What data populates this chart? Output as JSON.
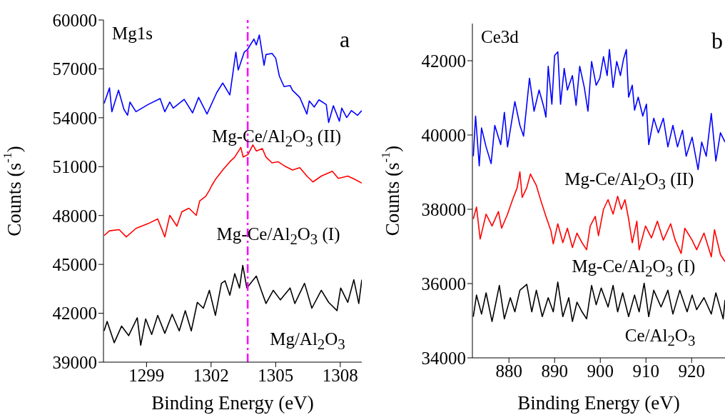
{
  "chart_data": [
    {
      "type": "line",
      "title": "Mg1s",
      "xlabel": "Binding Energy (eV)",
      "ylabel": "Counts (s$^{-1}$)",
      "xlim": [
        1297,
        1309
      ],
      "xticks": [
        1299,
        1302,
        1305,
        1308
      ],
      "ylim": [
        39000,
        60000
      ],
      "yticks": [
        39000,
        42000,
        45000,
        48000,
        51000,
        54000,
        57000,
        60000
      ],
      "annotations": [
        "a",
        "Mg-Ce/Al$_{2}$O$_{3}$ (II)",
        "Mg-Ce/Al$_{2}$O$_{3}$ (I)",
        "Mg/Al$_{2}$O$_{3}$"
      ],
      "ref_lines": [
        {
          "axis": "x",
          "value": 1303.7,
          "color": "#ff00ff",
          "line_style": "dashed"
        }
      ],
      "series": [
        {
          "color": "#0000ff",
          "x": [
            1297.03,
            1297.28,
            1297.39,
            1297.7,
            1297.95,
            1298.12,
            1298.23,
            1298.51,
            1299.07,
            1299.63,
            1299.85,
            1300.08,
            1300.24,
            1300.75,
            1301.14,
            1301.42,
            1301.81,
            1302.26,
            1302.54,
            1302.87,
            1303.15,
            1303.26,
            1303.54,
            1303.68,
            1303.99,
            1304.1,
            1304.24,
            1304.46,
            1304.55,
            1304.83,
            1305.0,
            1305.17,
            1305.39,
            1305.67,
            1305.78,
            1306.12,
            1306.45,
            1306.56,
            1306.79,
            1307.01,
            1307.35,
            1307.46,
            1307.68,
            1307.96,
            1308.07,
            1308.3,
            1308.52,
            1308.8,
            1309.0
          ],
          "values": [
            54880,
            55830,
            54370,
            55690,
            54520,
            54150,
            54960,
            54370,
            54810,
            55180,
            54370,
            54960,
            54590,
            55130,
            54300,
            55250,
            54230,
            55540,
            56130,
            55400,
            58030,
            56930,
            58030,
            58170,
            58830,
            58470,
            59080,
            57220,
            57880,
            57950,
            57660,
            56560,
            55910,
            55980,
            55690,
            55250,
            54230,
            55030,
            54660,
            55100,
            54810,
            53710,
            54740,
            53790,
            54590,
            54010,
            54440,
            54150,
            54440
          ]
        },
        {
          "color": "#ff0000",
          "x": [
            1297.03,
            1297.28,
            1297.73,
            1298.06,
            1298.51,
            1299.07,
            1299.52,
            1299.85,
            1300.08,
            1300.41,
            1300.64,
            1300.97,
            1301.31,
            1301.47,
            1301.75,
            1301.92,
            1302.03,
            1302.2,
            1302.54,
            1302.87,
            1303.1,
            1303.38,
            1303.49,
            1303.71,
            1303.94,
            1304.1,
            1304.38,
            1304.55,
            1304.83,
            1305.11,
            1305.45,
            1305.78,
            1306.12,
            1306.45,
            1306.73,
            1307.12,
            1307.63,
            1307.91,
            1308.35,
            1308.69,
            1309.0
          ],
          "values": [
            46770,
            47060,
            47130,
            46690,
            47210,
            47500,
            47790,
            46690,
            48010,
            47350,
            48230,
            48450,
            48010,
            48890,
            49180,
            49550,
            49840,
            50210,
            50790,
            51300,
            51590,
            52180,
            51590,
            51740,
            52330,
            51960,
            52110,
            51590,
            51230,
            51300,
            51010,
            50790,
            50940,
            50420,
            50060,
            50420,
            50720,
            50280,
            50420,
            50210,
            49990
          ]
        },
        {
          "color": "#000000",
          "x": [
            1297.03,
            1297.17,
            1297.5,
            1297.84,
            1298.17,
            1298.57,
            1298.73,
            1298.96,
            1299.24,
            1299.52,
            1299.85,
            1300.19,
            1300.52,
            1300.8,
            1301.08,
            1301.36,
            1301.64,
            1301.92,
            1302.2,
            1302.48,
            1302.65,
            1302.87,
            1303.1,
            1303.32,
            1303.47,
            1303.66,
            1303.88,
            1304.1,
            1304.33,
            1304.55,
            1304.89,
            1305.22,
            1305.67,
            1305.89,
            1306.34,
            1306.68,
            1307.12,
            1307.46,
            1307.85,
            1308.02,
            1308.35,
            1308.63,
            1308.86,
            1309.0
          ],
          "values": [
            40920,
            41500,
            40190,
            41210,
            40630,
            41720,
            40040,
            41650,
            40700,
            41870,
            40770,
            41940,
            40920,
            42160,
            40920,
            42670,
            42310,
            43410,
            41870,
            43840,
            43990,
            43110,
            44430,
            43550,
            44940,
            43550,
            43920,
            44280,
            43410,
            42600,
            43410,
            42820,
            43550,
            42600,
            43840,
            42310,
            43410,
            42670,
            42160,
            43550,
            42670,
            44060,
            42600,
            44060
          ]
        }
      ]
    },
    {
      "type": "line",
      "title": "Ce3d",
      "xlabel": "Binding Energy (eV)",
      "ylabel": "Counts (s$^{-1}$)",
      "xlim": [
        872,
        927.3
      ],
      "xticks": [
        880,
        890,
        900,
        910,
        920
      ],
      "ylim": [
        34000,
        43000
      ],
      "yticks": [
        34000,
        36000,
        38000,
        40000,
        42000
      ],
      "annotations": [
        "b",
        "Mg-Ce/Al$_{2}$O$_{3}$ (II)",
        "Mg-Ce/Al$_{2}$O$_{3}$ (I)",
        "Ce/Al$_{2}$O$_{3}$"
      ],
      "series": [
        {
          "color": "#0000ff",
          "x": [
            872.2,
            872.7,
            873.5,
            874.0,
            875.0,
            876.1,
            876.9,
            878.2,
            879.0,
            879.7,
            881.3,
            882.4,
            883.2,
            884.5,
            885.5,
            886.6,
            887.6,
            888.1,
            888.6,
            889.4,
            890.0,
            890.7,
            891.3,
            892.1,
            892.8,
            893.9,
            894.7,
            895.5,
            896.5,
            897.3,
            898.1,
            899.1,
            899.9,
            900.7,
            901.5,
            902.0,
            902.8,
            903.6,
            904.4,
            905.1,
            905.7,
            906.2,
            907.0,
            907.5,
            908.3,
            909.3,
            910.1,
            910.6,
            911.7,
            912.7,
            913.8,
            914.8,
            915.9,
            916.9,
            918.0,
            918.8,
            920.1,
            921.4,
            922.2,
            923.2,
            924.3,
            925.3,
            926.3,
            927.3
          ],
          "values": [
            39430,
            40510,
            39170,
            40190,
            39680,
            39230,
            40260,
            39740,
            40610,
            39680,
            40900,
            40260,
            39970,
            41530,
            40640,
            41210,
            40770,
            40480,
            41850,
            40830,
            42140,
            42240,
            40830,
            41790,
            41210,
            41600,
            40800,
            41850,
            41280,
            40640,
            41980,
            41340,
            41530,
            42110,
            41600,
            42300,
            41280,
            41980,
            41600,
            42050,
            42300,
            41020,
            41340,
            40670,
            41020,
            40510,
            40830,
            39740,
            40450,
            40060,
            40450,
            39680,
            40260,
            39680,
            40130,
            39430,
            39940,
            39070,
            39810,
            39430,
            40580,
            39300,
            40060,
            39810
          ]
        },
        {
          "color": "#ff0000",
          "x": [
            872.2,
            872.9,
            873.7,
            875.0,
            876.3,
            877.7,
            878.4,
            879.7,
            880.8,
            881.8,
            882.4,
            882.9,
            883.9,
            884.7,
            886.0,
            887.1,
            888.1,
            889.2,
            889.7,
            890.7,
            891.8,
            892.8,
            893.9,
            894.9,
            896.0,
            897.0,
            897.8,
            898.9,
            899.6,
            900.7,
            901.7,
            902.8,
            903.8,
            904.6,
            905.4,
            906.2,
            907.0,
            908.0,
            908.5,
            909.9,
            911.2,
            912.5,
            913.8,
            915.4,
            916.4,
            917.7,
            918.5,
            920.1,
            921.1,
            922.7,
            924.3,
            925.0,
            926.3,
            927.3
          ],
          "values": [
            37740,
            38060,
            37200,
            37870,
            37550,
            37940,
            37490,
            37870,
            38260,
            38580,
            39010,
            38320,
            38580,
            38950,
            38640,
            38190,
            37810,
            37420,
            37070,
            37610,
            37100,
            37490,
            36970,
            37360,
            37100,
            36910,
            37550,
            37810,
            37290,
            38000,
            38260,
            37870,
            38350,
            38000,
            38260,
            37740,
            37100,
            37680,
            36910,
            37550,
            37230,
            37680,
            37170,
            37610,
            37170,
            36810,
            37490,
            37170,
            36910,
            37360,
            36720,
            37450,
            36780,
            36590
          ]
        },
        {
          "color": "#000000",
          "x": [
            872.2,
            872.9,
            874.0,
            875.0,
            876.3,
            877.9,
            879.0,
            880.3,
            881.3,
            882.4,
            883.9,
            885.0,
            886.0,
            887.3,
            888.6,
            889.7,
            890.7,
            891.8,
            893.1,
            893.9,
            894.9,
            896.0,
            897.0,
            898.1,
            899.1,
            900.2,
            901.7,
            902.8,
            903.8,
            904.9,
            906.2,
            907.5,
            908.5,
            909.6,
            910.6,
            911.7,
            913.3,
            914.8,
            915.9,
            917.4,
            919.0,
            920.1,
            921.1,
            922.7,
            924.3,
            925.3,
            926.9,
            927.3
          ],
          "values": [
            35110,
            35690,
            35180,
            35750,
            34980,
            35950,
            35050,
            35620,
            35240,
            35820,
            35980,
            35240,
            35820,
            35110,
            35620,
            35240,
            36040,
            35110,
            35620,
            34980,
            35500,
            35240,
            35050,
            35950,
            35430,
            35880,
            35370,
            35950,
            35240,
            35750,
            35110,
            35690,
            35240,
            36010,
            35110,
            35820,
            35370,
            35820,
            35180,
            35820,
            35240,
            35690,
            35300,
            35620,
            35180,
            35750,
            35050,
            35560
          ]
        }
      ]
    }
  ]
}
